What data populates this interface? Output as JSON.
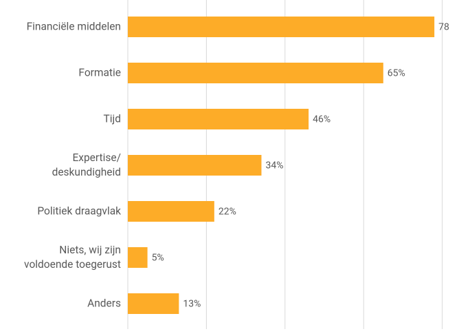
{
  "chart_data": {
    "type": "bar",
    "orientation": "horizontal",
    "categories": [
      "Financiële middelen",
      "Formatie",
      "Tijd",
      "Expertise/\ndeskundigheid",
      "Politiek draagvlak",
      "Niets, wij zijn\nvoldoende toegerust",
      "Anders"
    ],
    "values": [
      78,
      65,
      46,
      34,
      22,
      5,
      13
    ],
    "value_labels": [
      "78",
      "65%",
      "46%",
      "34%",
      "22%",
      "5%",
      "13%"
    ],
    "color": "#fdac28",
    "xlim": [
      0,
      80
    ],
    "xticks": [
      0,
      20,
      40,
      60,
      80
    ],
    "grid": true
  }
}
